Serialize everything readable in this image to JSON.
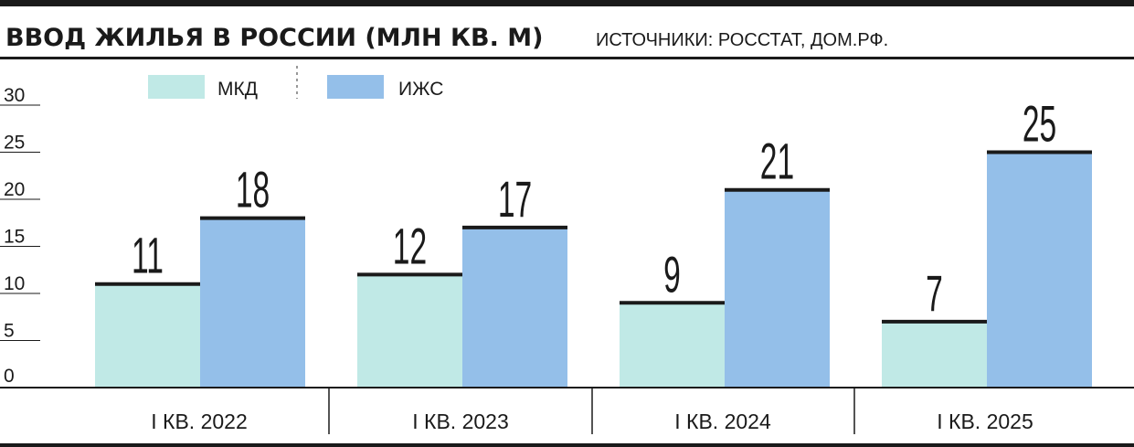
{
  "chart_data": {
    "type": "bar",
    "title": "ВВОД ЖИЛЬЯ В РОССИИ (МЛН КВ. М)",
    "source": "ИСТОЧНИКИ: РОССТАТ, ДОМ.РФ.",
    "categories": [
      "I КВ. 2022",
      "I КВ. 2023",
      "I КВ. 2024",
      "I КВ. 2025"
    ],
    "series": [
      {
        "name": "МКД",
        "values": [
          11,
          12,
          9,
          7
        ],
        "color": "#c0e9e6"
      },
      {
        "name": "ИЖС",
        "values": [
          18,
          17,
          21,
          25
        ],
        "color": "#94bfe9"
      }
    ],
    "yticks": [
      "0",
      "5",
      "10",
      "15",
      "20",
      "25",
      "30"
    ],
    "ylim": [
      0,
      30
    ],
    "legend_position": "top-left",
    "grid": false
  }
}
